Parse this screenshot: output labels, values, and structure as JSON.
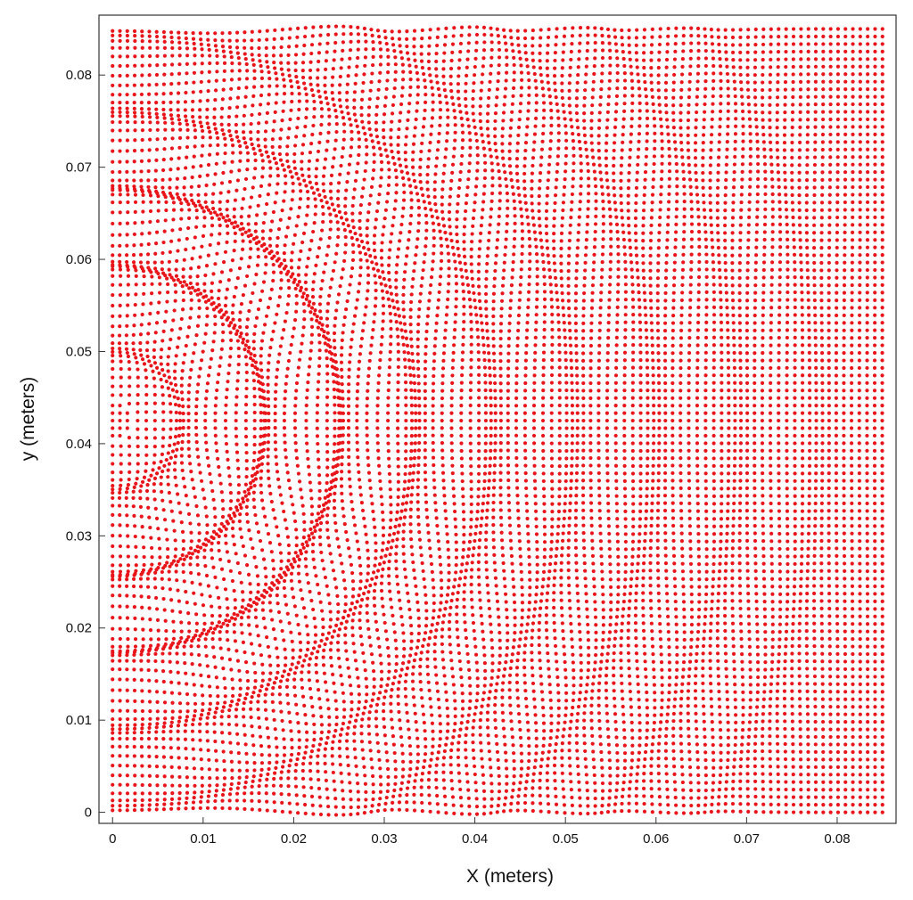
{
  "chart_data": {
    "type": "scatter",
    "title": "",
    "xlabel": "X (meters)",
    "ylabel": "y (meters)",
    "xlim": [
      -0.0015,
      0.0865
    ],
    "ylim": [
      -0.0012,
      0.0865
    ],
    "x_ticks": [
      0,
      0.01,
      0.02,
      0.03,
      0.04,
      0.05,
      0.06,
      0.07,
      0.08
    ],
    "x_tick_labels": [
      "0",
      "0.01",
      "0.02",
      "0.03",
      "0.04",
      "0.05",
      "0.06",
      "0.07",
      "0.08"
    ],
    "y_ticks": [
      0,
      0.01,
      0.02,
      0.03,
      0.04,
      0.05,
      0.06,
      0.07,
      0.08
    ],
    "y_tick_labels": [
      "0",
      "0.01",
      "0.02",
      "0.03",
      "0.04",
      "0.05",
      "0.06",
      "0.07",
      "0.08"
    ],
    "grid": false,
    "legend": "none",
    "marker_color": "#e8151b",
    "description_of_points": "Regular lattice of particles spanning x 0 to 0.085 m and y 0 to 0.085 m (about 105 x 105 points), displaced by outward-travelling semicircular wavefronts centred near (0, 0.0425) m; densest crests near x = 0.017 m and x = 0.025 m.",
    "lattice": {
      "x_start": 0,
      "x_end": 0.085,
      "y_start": 0,
      "y_end": 0.085,
      "nx": 105,
      "ny": 105
    },
    "source_point": {
      "x": 0,
      "y": 0.0425
    },
    "wavefronts": [
      {
        "radius": 0.0075,
        "strength": 0.0011
      },
      {
        "radius": 0.0168,
        "strength": 0.0016
      },
      {
        "radius": 0.0252,
        "strength": 0.0016
      },
      {
        "radius": 0.0335,
        "strength": 0.0011
      },
      {
        "radius": 0.042,
        "strength": 0.0008
      },
      {
        "radius": 0.051,
        "strength": 0.0006
      },
      {
        "radius": 0.06,
        "strength": 0.0005
      },
      {
        "radius": 0.069,
        "strength": 0.0004
      },
      {
        "radius": 0.078,
        "strength": 0.0003
      }
    ]
  }
}
